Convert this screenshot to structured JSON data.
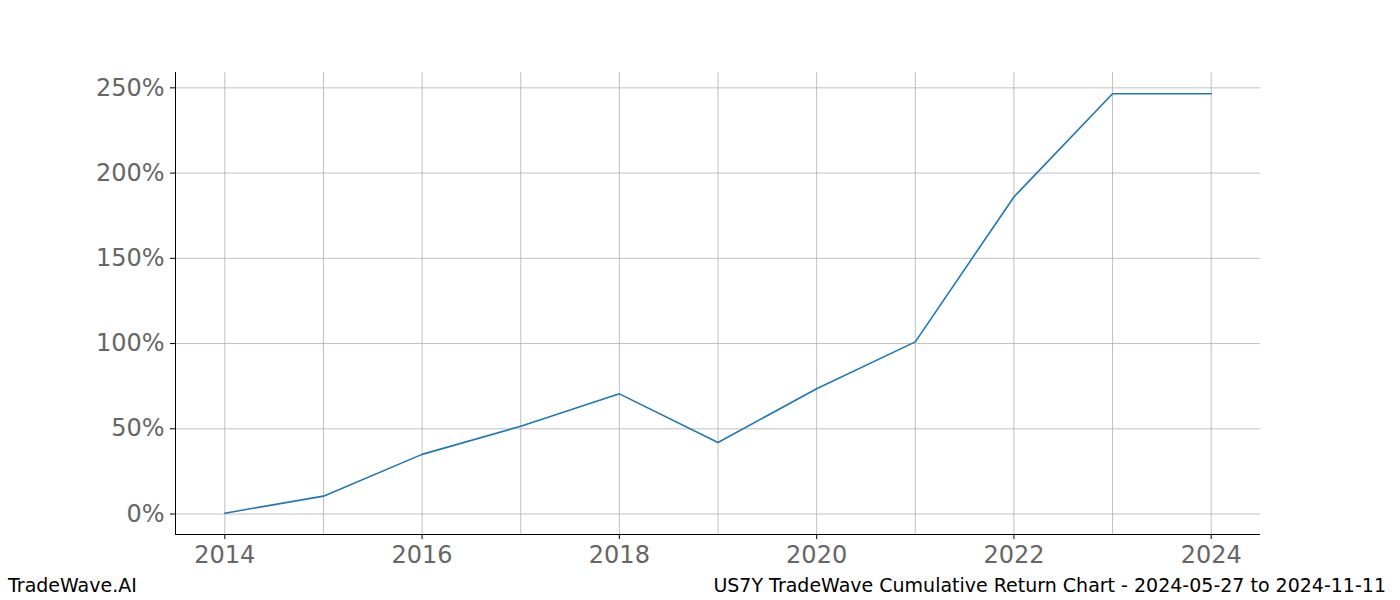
{
  "chart_data": {
    "type": "line",
    "caption": "US7Y TradeWave Cumulative Return Chart - 2024-05-27 to 2024-11-11",
    "source": "TradeWave.AI",
    "x": [
      2014,
      2015,
      2016,
      2017,
      2018,
      2019,
      2020,
      2021,
      2022,
      2023,
      2024
    ],
    "series": [
      {
        "name": "US7Y",
        "color": "#1f77b4",
        "values": [
          0.5,
          10.5,
          35,
          51.5,
          70.5,
          42,
          73.5,
          101,
          186,
          246.5,
          246.5
        ]
      }
    ],
    "xlim": [
      2013.5,
      2024.5
    ],
    "xticks": [
      2014,
      2016,
      2018,
      2020,
      2022,
      2024
    ],
    "ylim": [
      -12,
      259
    ],
    "yticks": [
      {
        "value": 0,
        "label": "0%"
      },
      {
        "value": 50,
        "label": "50%"
      },
      {
        "value": 100,
        "label": "100%"
      },
      {
        "value": 150,
        "label": "150%"
      },
      {
        "value": 200,
        "label": "200%"
      },
      {
        "value": 250,
        "label": "250%"
      }
    ],
    "grid": true
  }
}
